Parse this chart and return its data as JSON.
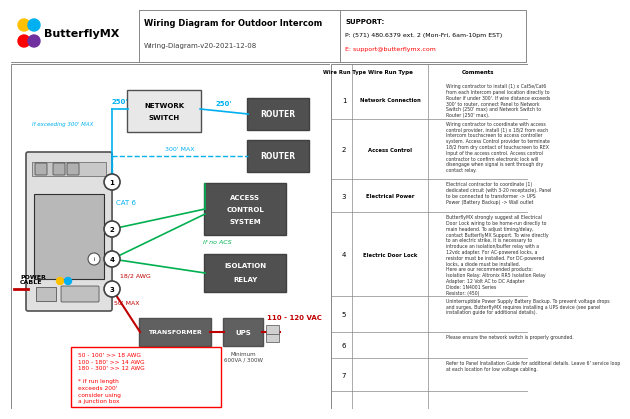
{
  "title": "Wiring Diagram for Outdoor Intercom",
  "subtitle": "Wiring-Diagram-v20-2021-12-08",
  "support_text": "SUPPORT:",
  "support_phone": "P: (571) 480.6379 ext. 2 (Mon-Fri, 6am-10pm EST)",
  "support_email": "E: support@butterflymx.com",
  "cyan_color": "#00b0f0",
  "green_color": "#00b050",
  "red_color": "#ff0000",
  "dark_red": "#c00000",
  "wire_run_rows": [
    {
      "num": "1",
      "type": "Network Connection",
      "comment": "Wiring contractor to install (1) x Cat5e/Cat6\nfrom each Intercom panel location directly to\nRouter if under 300'. If wire distance exceeds\n300' to router, connect Panel to Network\nSwitch (250' max) and Network Switch to\nRouter (250' max)."
    },
    {
      "num": "2",
      "type": "Access Control",
      "comment": "Wiring contractor to coordinate with access\ncontrol provider, install (1) x 18/2 from each\nIntercom touchscreen to access controller\nsystem. Access Control provider to terminate\n18/2 from dry contact of touchscreen to REX\nInput of the access control. Access control\ncontractor to confirm electronic lock will\ndisengage when signal is sent through dry\ncontact relay."
    },
    {
      "num": "3",
      "type": "Electrical Power",
      "comment": "Electrical contractor to coordinate (1)\ndedicated circuit (with 3-20 receptacle). Panel\nto be connected to transformer -> UPS\nPower (Battery Backup) -> Wall outlet"
    },
    {
      "num": "4",
      "type": "Electric Door Lock",
      "comment": "ButterflyMX strongly suggest all Electrical\nDoor Lock wiring to be home-run directly to\nmain headend. To adjust timing/delay,\ncontact ButterflyMX Support. To wire directly\nto an electric strike, it is necessary to\nintroduce an isolation/buffer relay with a\n12vdc adapter. For AC-powered locks, a\nresistor must be installed. For DC-powered\nlocks, a diode must be installed.\nHere are our recommended products:\nIsolation Relay: Altronix RR5 Isolation Relay\nAdapter: 12 Volt AC to DC Adapter\nDiode: 1N4001 Series\nResistor: (450)"
    },
    {
      "num": "5",
      "type": "",
      "comment": "Uninterruptible Power Supply Battery Backup. To prevent voltage drops\nand surges, ButterflyMX requires installing a UPS device (see panel\ninstallation guide for additional details)."
    },
    {
      "num": "6",
      "type": "",
      "comment": "Please ensure the network switch is properly grounded."
    },
    {
      "num": "7",
      "type": "",
      "comment": "Refer to Panel Installation Guide for additional details. Leave 6' service loop\nat each location for low voltage cabling."
    }
  ]
}
